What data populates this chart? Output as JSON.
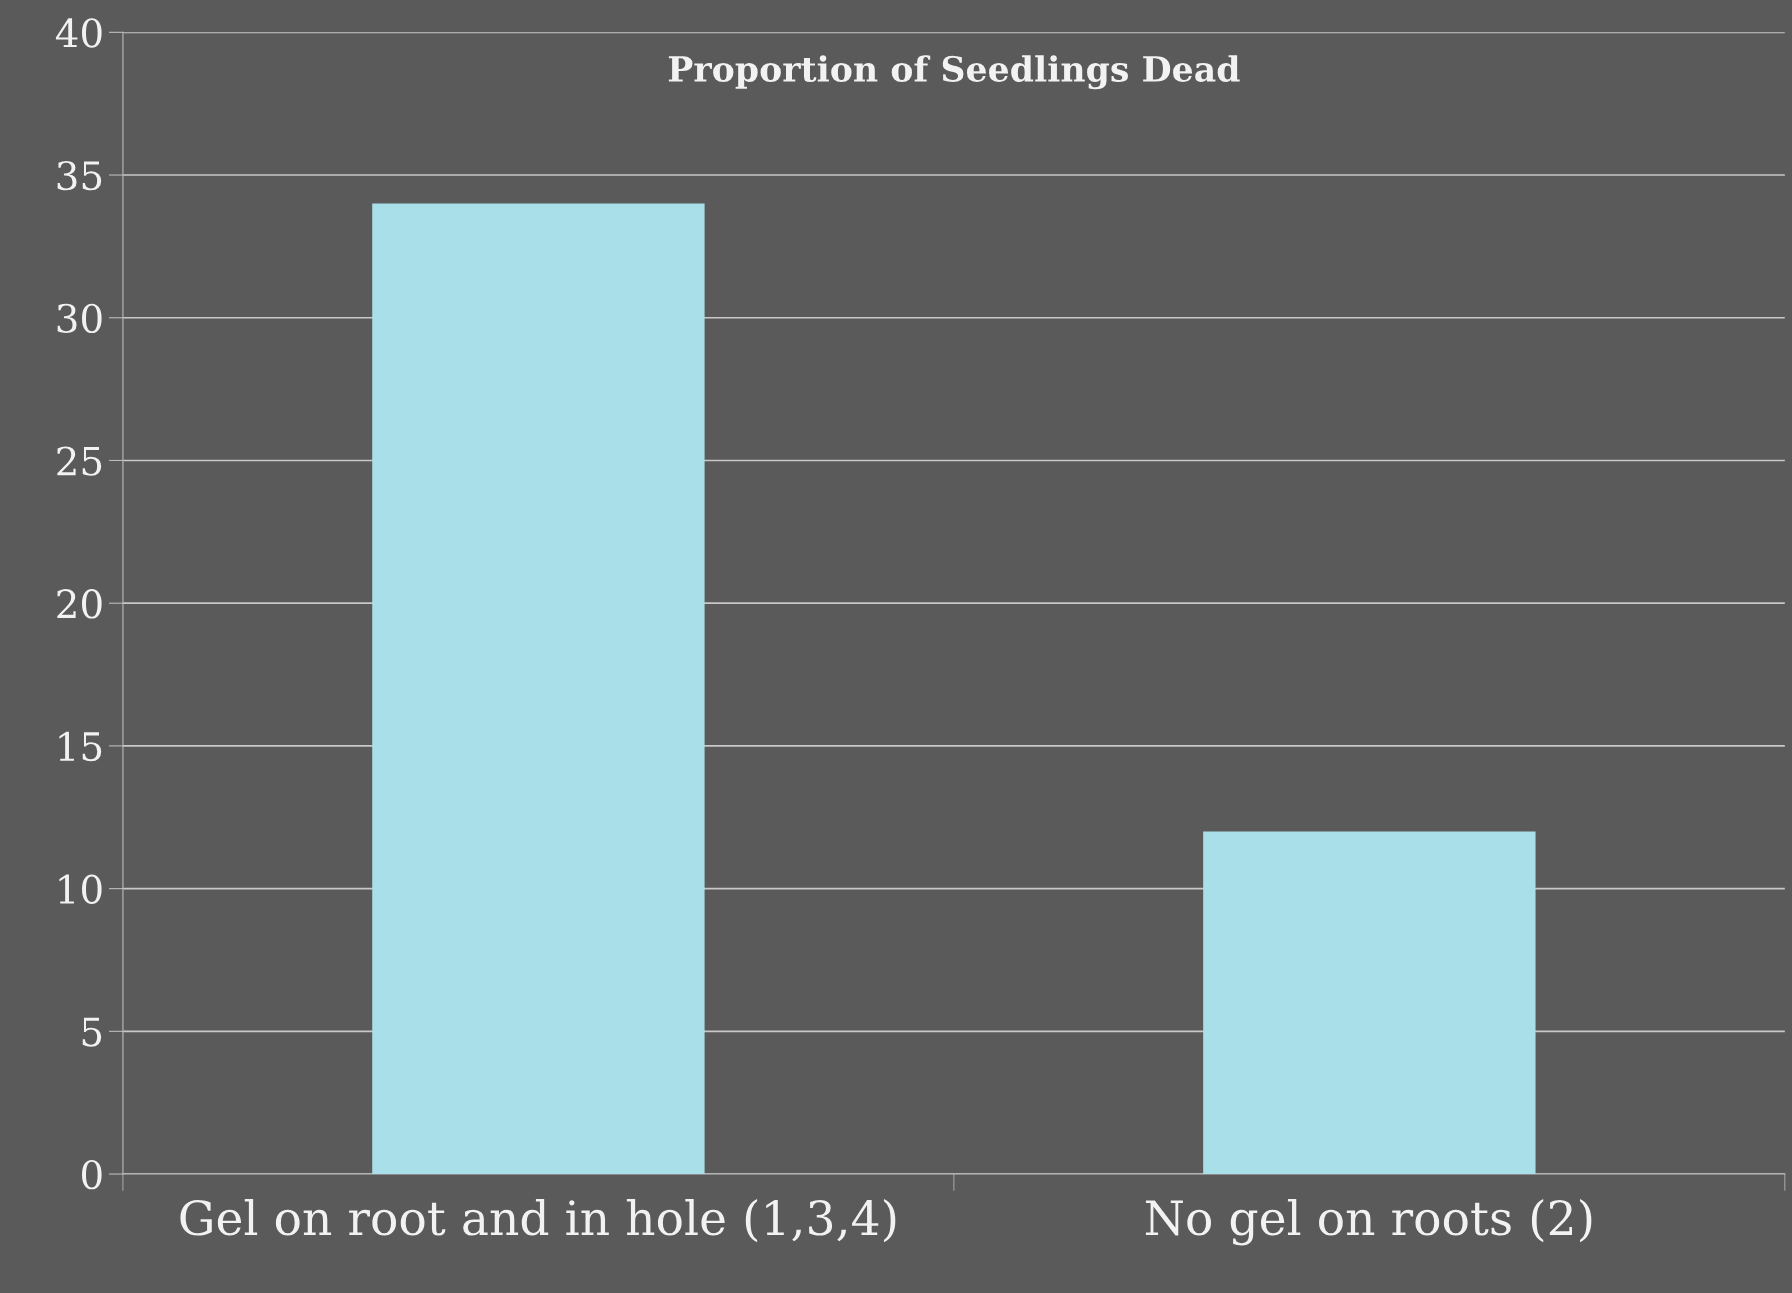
{
  "chart_data": {
    "type": "bar",
    "title": "Proportion of Seedlings Dead",
    "categories": [
      "Gel on root and in hole (1,3,4)",
      "No gel on roots (2)"
    ],
    "values": [
      34,
      12
    ],
    "color": "#a9dfe9",
    "ylim": [
      0,
      40
    ],
    "yticks": [
      0,
      5,
      10,
      15,
      20,
      25,
      30,
      35,
      40
    ],
    "grid": "y"
  }
}
